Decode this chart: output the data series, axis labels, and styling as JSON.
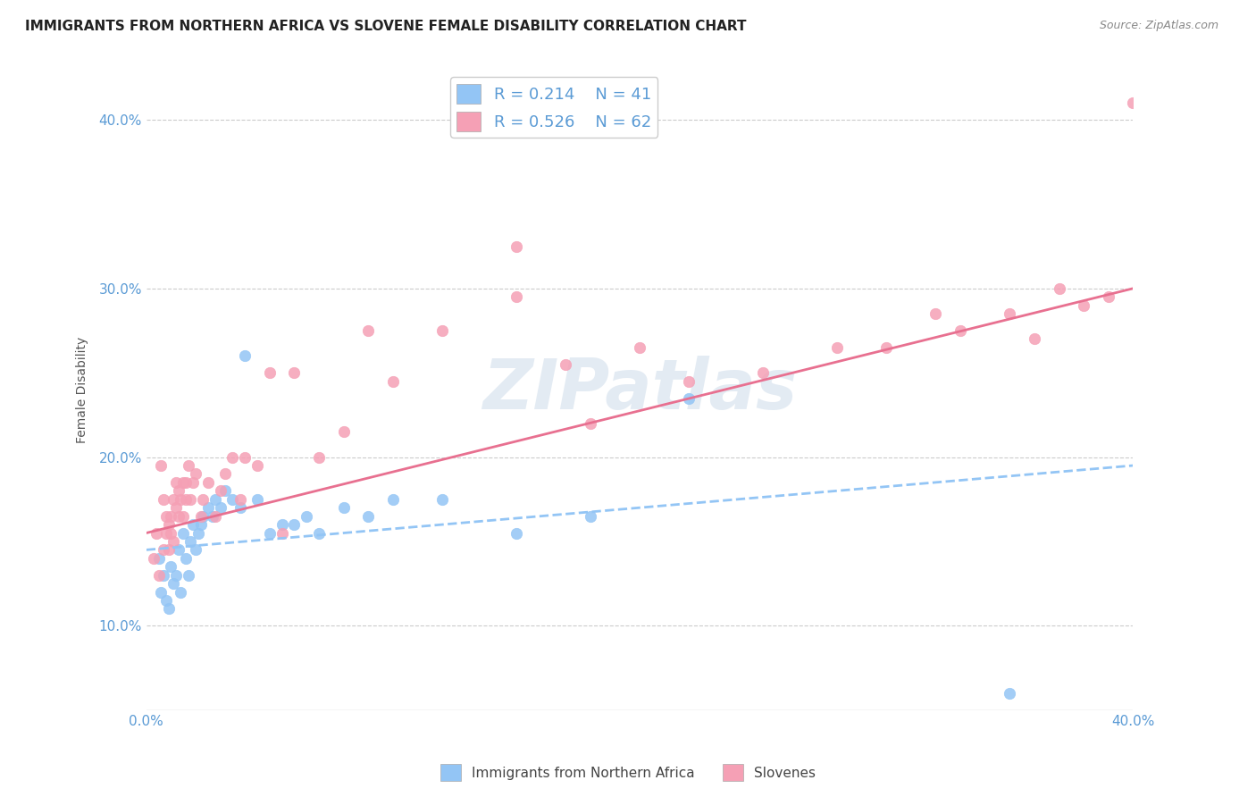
{
  "title": "IMMIGRANTS FROM NORTHERN AFRICA VS SLOVENE FEMALE DISABILITY CORRELATION CHART",
  "source": "Source: ZipAtlas.com",
  "ylabel": "Female Disability",
  "watermark": "ZIPatlas",
  "legend_r1": "R = 0.214",
  "legend_n1": "N = 41",
  "legend_r2": "R = 0.526",
  "legend_n2": "N = 62",
  "series1_label": "Immigrants from Northern Africa",
  "series2_label": "Slovenes",
  "color1": "#93c5f5",
  "color2": "#f5a0b5",
  "line1_color": "#93c5f5",
  "line2_color": "#e87090",
  "xlim": [
    0.0,
    0.4
  ],
  "ylim": [
    0.05,
    0.43
  ],
  "yticks": [
    0.1,
    0.2,
    0.3,
    0.4
  ],
  "ytick_labels": [
    "10.0%",
    "20.0%",
    "30.0%",
    "40.0%"
  ],
  "xticks": [
    0.0,
    0.1,
    0.2,
    0.3,
    0.4
  ],
  "xtick_labels": [
    "0.0%",
    "",
    "",
    "",
    "40.0%"
  ],
  "scatter1_x": [
    0.005,
    0.006,
    0.007,
    0.008,
    0.009,
    0.01,
    0.011,
    0.012,
    0.013,
    0.014,
    0.015,
    0.016,
    0.017,
    0.018,
    0.019,
    0.02,
    0.021,
    0.022,
    0.023,
    0.025,
    0.027,
    0.028,
    0.03,
    0.032,
    0.035,
    0.038,
    0.04,
    0.045,
    0.05,
    0.055,
    0.06,
    0.065,
    0.07,
    0.08,
    0.09,
    0.1,
    0.12,
    0.15,
    0.18,
    0.22,
    0.35
  ],
  "scatter1_y": [
    0.14,
    0.12,
    0.13,
    0.115,
    0.11,
    0.135,
    0.125,
    0.13,
    0.145,
    0.12,
    0.155,
    0.14,
    0.13,
    0.15,
    0.16,
    0.145,
    0.155,
    0.16,
    0.165,
    0.17,
    0.165,
    0.175,
    0.17,
    0.18,
    0.175,
    0.17,
    0.26,
    0.175,
    0.155,
    0.16,
    0.16,
    0.165,
    0.155,
    0.17,
    0.165,
    0.175,
    0.175,
    0.155,
    0.165,
    0.235,
    0.06
  ],
  "scatter2_x": [
    0.003,
    0.004,
    0.005,
    0.006,
    0.007,
    0.007,
    0.008,
    0.008,
    0.009,
    0.009,
    0.01,
    0.01,
    0.011,
    0.011,
    0.012,
    0.012,
    0.013,
    0.013,
    0.014,
    0.015,
    0.015,
    0.016,
    0.016,
    0.017,
    0.018,
    0.019,
    0.02,
    0.022,
    0.023,
    0.025,
    0.028,
    0.03,
    0.032,
    0.035,
    0.038,
    0.04,
    0.045,
    0.05,
    0.055,
    0.06,
    0.07,
    0.08,
    0.09,
    0.1,
    0.12,
    0.15,
    0.17,
    0.2,
    0.25,
    0.3,
    0.33,
    0.35,
    0.37,
    0.38,
    0.39,
    0.4,
    0.15,
    0.18,
    0.22,
    0.28,
    0.32,
    0.36
  ],
  "scatter2_y": [
    0.14,
    0.155,
    0.13,
    0.195,
    0.145,
    0.175,
    0.155,
    0.165,
    0.145,
    0.16,
    0.165,
    0.155,
    0.15,
    0.175,
    0.17,
    0.185,
    0.165,
    0.18,
    0.175,
    0.165,
    0.185,
    0.175,
    0.185,
    0.195,
    0.175,
    0.185,
    0.19,
    0.165,
    0.175,
    0.185,
    0.165,
    0.18,
    0.19,
    0.2,
    0.175,
    0.2,
    0.195,
    0.25,
    0.155,
    0.25,
    0.2,
    0.215,
    0.275,
    0.245,
    0.275,
    0.295,
    0.255,
    0.265,
    0.25,
    0.265,
    0.275,
    0.285,
    0.3,
    0.29,
    0.295,
    0.41,
    0.325,
    0.22,
    0.245,
    0.265,
    0.285,
    0.27
  ],
  "line1_x": [
    0.0,
    0.4
  ],
  "line1_y": [
    0.145,
    0.195
  ],
  "line2_x": [
    0.0,
    0.4
  ],
  "line2_y": [
    0.155,
    0.3
  ],
  "title_fontsize": 11,
  "axis_label_color": "#5b9bd5",
  "tick_label_color": "#5b9bd5",
  "background_color": "#ffffff",
  "grid_color": "#cccccc"
}
